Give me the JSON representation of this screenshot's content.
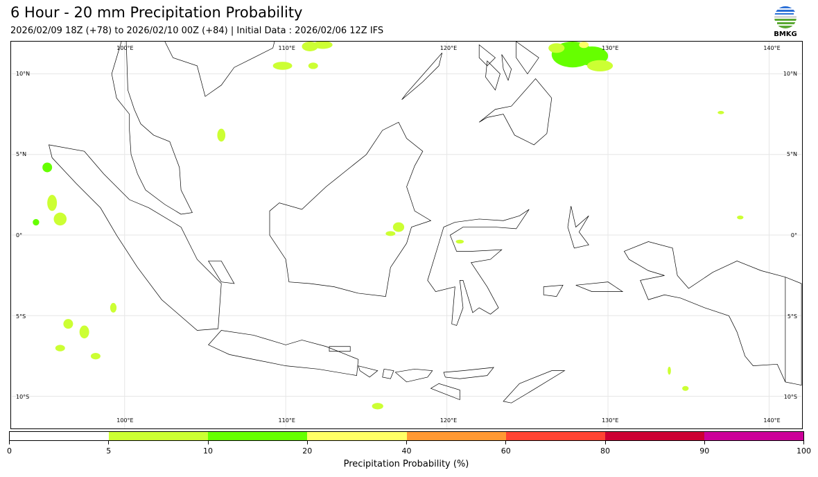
{
  "header": {
    "title": "6 Hour - 20 mm Precipitation Probability",
    "subtitle": "2026/02/09 18Z (+78) to 2026/02/10 00Z (+84) | Initial Data : 2026/02/06 12Z IFS",
    "logo_text": "BMKG"
  },
  "map": {
    "extent": {
      "lon": [
        93,
        142
      ],
      "lat": [
        -12,
        12
      ]
    },
    "lon_labels": [
      "100°E",
      "110°E",
      "120°E",
      "130°E",
      "140°E"
    ],
    "lon_values": [
      100,
      110,
      120,
      130,
      140
    ],
    "lat_labels": [
      "10°N",
      "5°N",
      "0°",
      "5°S",
      "10°S"
    ],
    "lat_values": [
      10,
      5,
      0,
      -5,
      -10
    ]
  },
  "colorbar": {
    "label": "Precipitation Probability (%)",
    "ticks": [
      "0",
      "5",
      "10",
      "20",
      "40",
      "60",
      "80",
      "90",
      "100"
    ],
    "colors": [
      "#ffffff",
      "#ccff33",
      "#66ff00",
      "#ffff66",
      "#ff9933",
      "#ff4433",
      "#cc0033",
      "#cc0099"
    ]
  }
}
